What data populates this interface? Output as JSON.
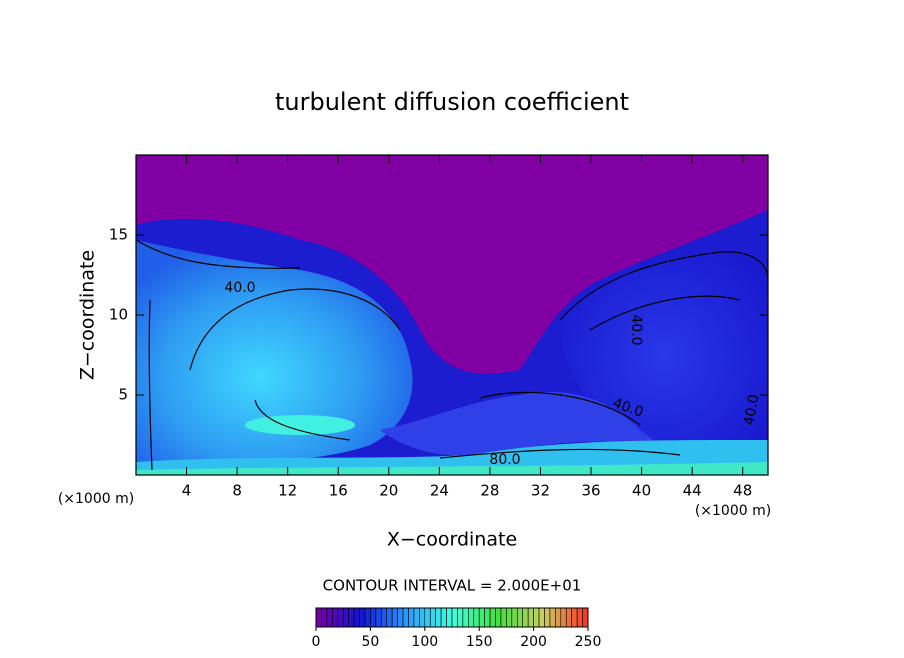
{
  "chart_data": {
    "type": "contour",
    "title": "turbulent diffusion coefficient",
    "x_label": "X−coordinate",
    "y_label": "Z−coordinate",
    "x_unit_label": "(×1000 m)",
    "y_unit_label": "(×1000 m)",
    "xlim": [
      0,
      50
    ],
    "xticks": [
      4,
      8,
      12,
      16,
      20,
      24,
      28,
      32,
      36,
      40,
      44,
      48
    ],
    "ylim": [
      0,
      20
    ],
    "yticks": [
      5,
      10,
      15
    ],
    "contour_interval_label": "CONTOUR INTERVAL = 2.000E+01",
    "contour_labels": [
      "40.0",
      "40.0",
      "40.0",
      "80.0",
      "40.0"
    ],
    "colorbar": {
      "lim": [
        0,
        250
      ],
      "ticks": [
        0,
        50,
        100,
        150,
        200,
        250
      ],
      "colors": [
        "#7a00a0",
        "#1414d8",
        "#2a9cff",
        "#40ffe0",
        "#40e040",
        "#c8d060",
        "#ff3020"
      ]
    }
  }
}
